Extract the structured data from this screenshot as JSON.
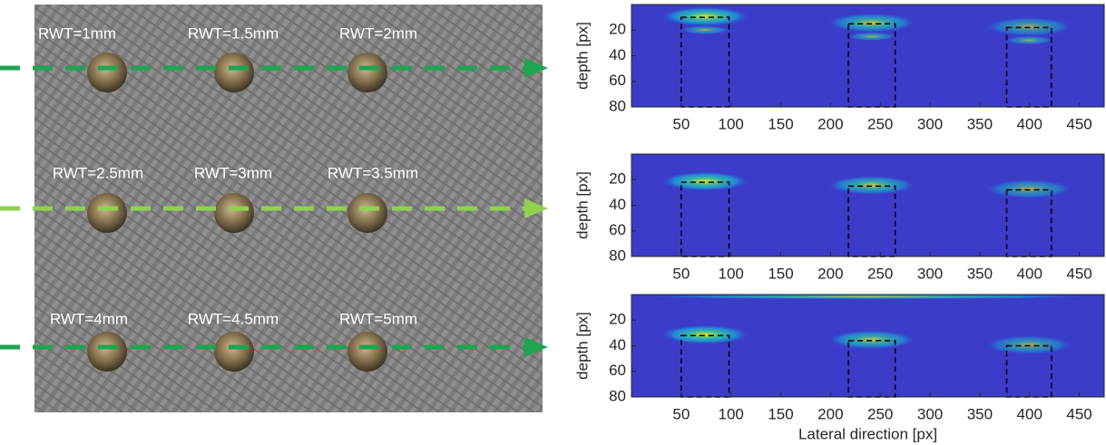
{
  "photo": {
    "labels": [
      "RWT=1mm",
      "RWT=1.5mm",
      "RWT=2mm",
      "RWT=2.5mm",
      "RWT=3mm",
      "RWT=3.5mm",
      "RWT=4mm",
      "RWT=4.5mm",
      "RWT=5mm"
    ]
  },
  "chart_data": [
    {
      "type": "heatmap",
      "ylabel": "depth [px]",
      "xlim": [
        0,
        475
      ],
      "ylim": [
        0,
        80
      ],
      "y_reversed": true,
      "xticks": [
        50,
        100,
        150,
        200,
        250,
        300,
        350,
        400,
        450
      ],
      "yticks": [
        20,
        40,
        60,
        80
      ],
      "regions": [
        {
          "x1": 50,
          "x2": 98,
          "top": 10
        },
        {
          "x1": 218,
          "x2": 265,
          "top": 15
        },
        {
          "x1": 377,
          "x2": 422,
          "top": 18
        }
      ]
    },
    {
      "type": "heatmap",
      "ylabel": "depth [px]",
      "xlim": [
        0,
        475
      ],
      "ylim": [
        0,
        80
      ],
      "y_reversed": true,
      "xticks": [
        50,
        100,
        150,
        200,
        250,
        300,
        350,
        400,
        450
      ],
      "yticks": [
        20,
        40,
        60,
        80
      ],
      "regions": [
        {
          "x1": 50,
          "x2": 98,
          "top": 22
        },
        {
          "x1": 218,
          "x2": 265,
          "top": 25
        },
        {
          "x1": 377,
          "x2": 422,
          "top": 28
        }
      ]
    },
    {
      "type": "heatmap",
      "ylabel": "depth [px]",
      "xlabel": "Lateral direction [px]",
      "xlim": [
        0,
        475
      ],
      "ylim": [
        0,
        80
      ],
      "y_reversed": true,
      "xticks": [
        50,
        100,
        150,
        200,
        250,
        300,
        350,
        400,
        450
      ],
      "yticks": [
        20,
        40,
        60,
        80
      ],
      "regions": [
        {
          "x1": 50,
          "x2": 98,
          "top": 32
        },
        {
          "x1": 218,
          "x2": 265,
          "top": 36
        },
        {
          "x1": 377,
          "x2": 422,
          "top": 40
        }
      ]
    }
  ]
}
